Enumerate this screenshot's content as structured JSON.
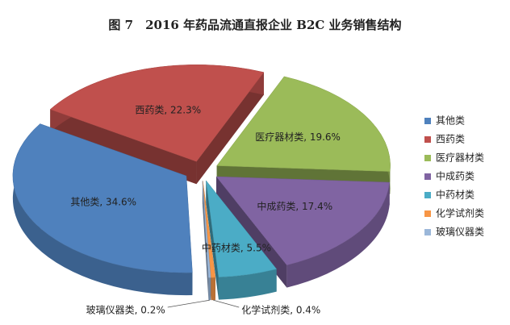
{
  "chart_data": {
    "type": "pie",
    "title": "图 7　2016 年药品流通直报企业 B2C 业务销售结构",
    "categories": [
      "其他类",
      "西药类",
      "医疗器材类",
      "中成药类",
      "中药材类",
      "化学试剂类",
      "玻璃仪器类"
    ],
    "values": [
      34.6,
      22.3,
      19.6,
      17.4,
      5.5,
      0.4,
      0.2
    ],
    "value_labels": [
      "其他类, 34.6%",
      "西药类, 22.3%",
      "医疗器材类, 19.6%",
      "中成药类, 17.4%",
      "中药材类, 5.5%",
      "化学试剂类, 0.4%",
      "玻璃仪器类, 0.2%"
    ],
    "colors": [
      "#4f81bd",
      "#c0504d",
      "#9bbb59",
      "#8064a2",
      "#4bacc6",
      "#f79646",
      "#9bb7d9"
    ],
    "legend": "right"
  }
}
